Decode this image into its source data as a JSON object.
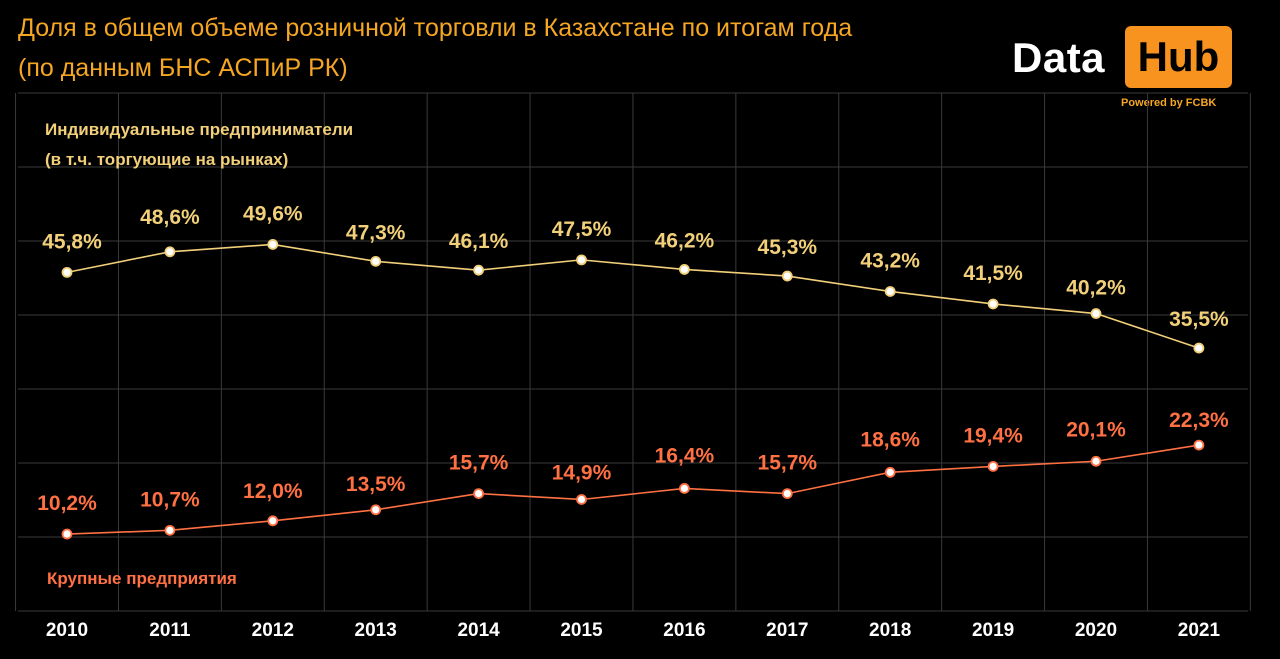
{
  "title": {
    "line1": "Доля в общем объеме розничной торговли в Казахстане по итогам года",
    "line2": "(по данным БНС АСПиР РК)"
  },
  "logo": {
    "data_text": "Data",
    "hub_text": "Hub",
    "powered_text": "Powered by FCBK"
  },
  "colors": {
    "background": "#000000",
    "title": "#f5a623",
    "series_individual": "#f2d07a",
    "series_large": "#ff7043",
    "grid": "#3a3a3a",
    "axis_text": "#ffffff",
    "logo_box": "#f7931e"
  },
  "chart_data": {
    "type": "line",
    "x": [
      "2010",
      "2011",
      "2012",
      "2013",
      "2014",
      "2015",
      "2016",
      "2017",
      "2018",
      "2019",
      "2020",
      "2021"
    ],
    "series": [
      {
        "name": "Индивидуальные предприниматели (в т.ч. торгующие на рынках)",
        "name_lines": [
          "Индивидуальные предприниматели",
          "(в т.ч. торгующие на рынках)"
        ],
        "values": [
          45.8,
          48.6,
          49.6,
          47.3,
          46.1,
          47.5,
          46.2,
          45.3,
          43.2,
          41.5,
          40.2,
          35.5
        ],
        "labels": [
          "45,8%",
          "48,6%",
          "49,6%",
          "47,3%",
          "46,1%",
          "47,5%",
          "46,2%",
          "45,3%",
          "43,2%",
          "41,5%",
          "40,2%",
          "35,5%"
        ]
      },
      {
        "name": "Крупные предприятия",
        "name_lines": [
          "Крупные предприятия"
        ],
        "values": [
          10.2,
          10.7,
          12.0,
          13.5,
          15.7,
          14.9,
          16.4,
          15.7,
          18.6,
          19.4,
          20.1,
          22.3
        ],
        "labels": [
          "10,2%",
          "10,7%",
          "12,0%",
          "13,5%",
          "15,7%",
          "14,9%",
          "16,4%",
          "15,7%",
          "18,6%",
          "19,4%",
          "20,1%",
          "22,3%"
        ]
      }
    ],
    "ylim": [
      0,
      60
    ],
    "grid": true,
    "legend": "inline labels near series"
  }
}
